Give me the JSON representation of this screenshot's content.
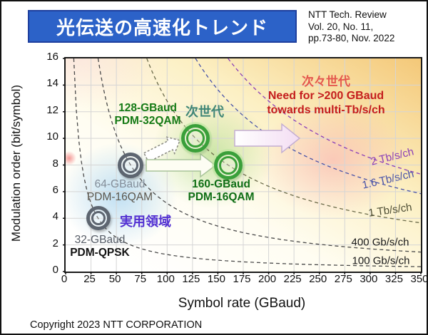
{
  "slide": {
    "title": "光伝送の高速化トレンド",
    "reference_lines": [
      "NTT Tech. Review",
      "Vol. 20, No. 11,",
      "pp.73-80, Nov. 2022"
    ],
    "copyright": "Copyright 2023 NTT CORPORATION"
  },
  "colors": {
    "title_bar_bg": "#2c62c8",
    "title_bar_border": "#1e3f9e",
    "title_text": "#ffffff",
    "plot_gradient_topright": "#f4c878",
    "practical_region_blob": "#8cc6ee",
    "next_gen_blob": "#98d26e",
    "next_next_gen_blob": "#f68ea2",
    "gray_marker": "#5d6570",
    "green_marker": "#3aa03a",
    "practical_text": "#5230d2",
    "next_gen_text": "#3f8576",
    "next_next_gen_text": "#e4584e",
    "need_text": "#c41d1d",
    "grid": "#d5d5d5"
  },
  "chart_data": {
    "type": "scatter",
    "title": "光伝送の高速化トレンド",
    "xlabel": "Symbol rate (GBaud)",
    "ylabel": "Modulation order (bit/symbol)",
    "xlim": [
      0,
      350
    ],
    "ylim": [
      0,
      16
    ],
    "x_ticks": [
      0,
      25,
      50,
      75,
      100,
      125,
      150,
      175,
      200,
      225,
      250,
      275,
      300,
      325,
      350
    ],
    "y_ticks": [
      0,
      2,
      4,
      6,
      8,
      10,
      12,
      14,
      16
    ],
    "grid": true,
    "legend": "none",
    "points": [
      {
        "x": 32,
        "y": 4,
        "rate_label": "32-GBaud",
        "scheme": "PDM-QPSK",
        "group": "practical",
        "marker_color": "#5d6570",
        "size": 34
      },
      {
        "x": 64,
        "y": 8,
        "rate_label": "64-GBaud",
        "scheme": "PDM-16QAM",
        "group": "practical",
        "marker_color": "#5d6570",
        "size": 36
      },
      {
        "x": 128,
        "y": 10,
        "rate_label": "128-GBaud",
        "scheme": "PDM-32QAM",
        "group": "next-gen",
        "marker_color": "#3aa03a",
        "size": 40
      },
      {
        "x": 160,
        "y": 8,
        "rate_label": "160-GBaud",
        "scheme": "PDM-16QAM",
        "group": "next-gen",
        "marker_color": "#3aa03a",
        "size": 40
      }
    ],
    "iso_bitrate_curves": [
      {
        "label": "100 Gb/s/ch",
        "raw_gbps": 128,
        "color": "#4a4a4a"
      },
      {
        "label": "400 Gb/s/ch",
        "raw_gbps": 512,
        "color": "#4a4a4a"
      },
      {
        "label": "1 Tb/s/ch",
        "raw_gbps": 1280,
        "color": "#6b6b4a"
      },
      {
        "label": "1.6 Tb/s/ch",
        "raw_gbps": 2048,
        "color": "#4752a8"
      },
      {
        "label": "2 Tb/s/ch",
        "raw_gbps": 2560,
        "color": "#8a3fb8"
      }
    ],
    "annotations": {
      "practical_region": "実用領域",
      "next_gen": "次世代",
      "next_next_gen": "次々世代",
      "need_line1": "Need for >200 GBaud",
      "need_line2": "towards multi-Tb/s/ch"
    }
  }
}
